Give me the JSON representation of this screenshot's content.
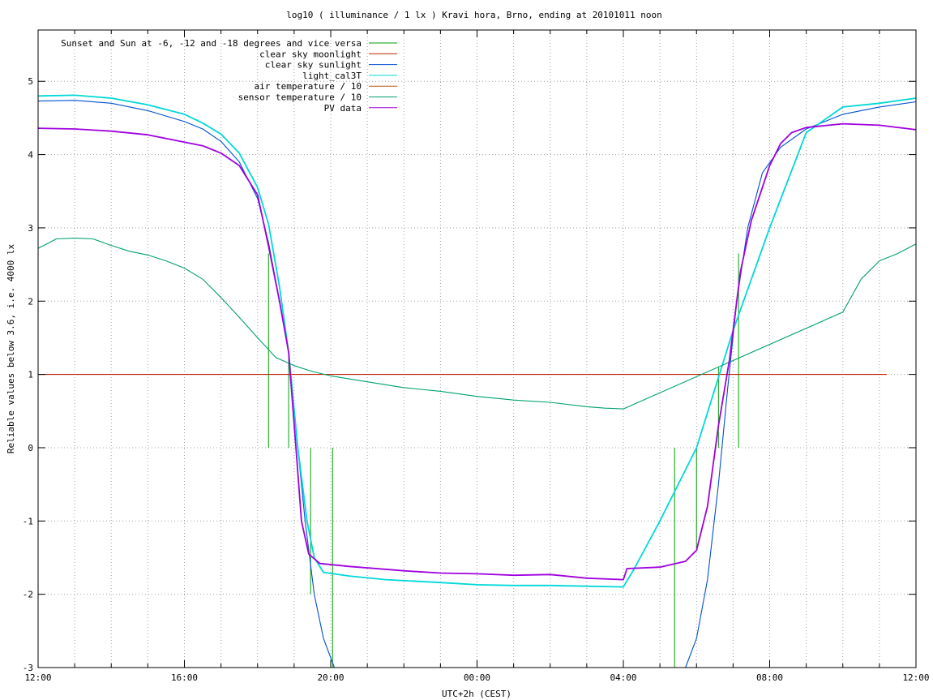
{
  "chart_data": {
    "type": "line",
    "title": "log10 ( illuminance / 1 lx ) Kravi hora, Brno, ending at 20101011 noon",
    "xlabel": "UTC+2h (CEST)",
    "ylabel": "Reliable values below 3.6, i.e. 4000 lx",
    "xlim": [
      0,
      24
    ],
    "ylim": [
      -3,
      5.7
    ],
    "x_ticks": [
      {
        "value": 0,
        "label": "12:00"
      },
      {
        "value": 4,
        "label": "16:00"
      },
      {
        "value": 8,
        "label": "20:00"
      },
      {
        "value": 12,
        "label": "00:00"
      },
      {
        "value": 16,
        "label": "04:00"
      },
      {
        "value": 20,
        "label": "08:00"
      },
      {
        "value": 24,
        "label": "12:00"
      }
    ],
    "x_minor_step": 1,
    "y_ticks": [
      {
        "value": -3,
        "label": "-3"
      },
      {
        "value": -2,
        "label": "-2"
      },
      {
        "value": -1,
        "label": "-1"
      },
      {
        "value": 0,
        "label": "0"
      },
      {
        "value": 1,
        "label": "1"
      },
      {
        "value": 2,
        "label": "2"
      },
      {
        "value": 3,
        "label": "3"
      },
      {
        "value": 4,
        "label": "4"
      },
      {
        "value": 5,
        "label": "5"
      }
    ],
    "grid": true,
    "legend_position": "top-left",
    "series": [
      {
        "name": "Sunset and Sun at -6, -12 and -18 degrees and vice versa",
        "color": "#00a000",
        "style": "impulses",
        "points": [
          [
            6.3,
            2.65
          ],
          [
            6.85,
            1.3
          ],
          [
            7.45,
            -2.0
          ],
          [
            8.05,
            -3.0
          ],
          [
            17.4,
            -3.0
          ],
          [
            18.0,
            -1.4
          ],
          [
            18.6,
            1.1
          ],
          [
            19.15,
            2.65
          ]
        ]
      },
      {
        "name": "clear sky moonlight",
        "color": "#c02000",
        "style": "line",
        "points": [
          [
            0,
            1.0
          ],
          [
            23.2,
            1.0
          ]
        ]
      },
      {
        "name": "clear sky sunlight",
        "color": "#0050d0",
        "style": "line",
        "points": [
          [
            0,
            4.73
          ],
          [
            1,
            4.74
          ],
          [
            2,
            4.7
          ],
          [
            3,
            4.6
          ],
          [
            4,
            4.45
          ],
          [
            4.5,
            4.35
          ],
          [
            5,
            4.18
          ],
          [
            5.5,
            3.9
          ],
          [
            6,
            3.4
          ],
          [
            6.3,
            2.8
          ],
          [
            6.6,
            2.0
          ],
          [
            6.85,
            1.3
          ],
          [
            7.1,
            0.0
          ],
          [
            7.3,
            -1.0
          ],
          [
            7.55,
            -2.0
          ],
          [
            7.8,
            -2.6
          ],
          [
            8.1,
            -3.0
          ],
          [
            17.7,
            -3.0
          ],
          [
            18.0,
            -2.6
          ],
          [
            18.3,
            -1.8
          ],
          [
            18.6,
            -0.5
          ],
          [
            18.85,
            0.8
          ],
          [
            19.1,
            2.0
          ],
          [
            19.4,
            3.0
          ],
          [
            19.8,
            3.75
          ],
          [
            20.3,
            4.1
          ],
          [
            21.0,
            4.35
          ],
          [
            22.0,
            4.55
          ],
          [
            23.0,
            4.65
          ],
          [
            24,
            4.72
          ]
        ]
      },
      {
        "name": "light_cal3T",
        "color": "#00d8d8",
        "style": "line",
        "points": [
          [
            0,
            4.8
          ],
          [
            1,
            4.81
          ],
          [
            2,
            4.77
          ],
          [
            3,
            4.68
          ],
          [
            4,
            4.55
          ],
          [
            4.5,
            4.43
          ],
          [
            5,
            4.28
          ],
          [
            5.5,
            4.02
          ],
          [
            6,
            3.55
          ],
          [
            6.3,
            3.05
          ],
          [
            6.6,
            2.2
          ],
          [
            6.85,
            1.3
          ],
          [
            7.1,
            0.0
          ],
          [
            7.35,
            -1.0
          ],
          [
            7.55,
            -1.5
          ],
          [
            7.8,
            -1.7
          ],
          [
            8.5,
            -1.75
          ],
          [
            9.5,
            -1.8
          ],
          [
            11,
            -1.84
          ],
          [
            12,
            -1.87
          ],
          [
            13,
            -1.88
          ],
          [
            14,
            -1.88
          ],
          [
            15,
            -1.89
          ],
          [
            16,
            -1.9
          ],
          [
            16.3,
            -1.65
          ],
          [
            17,
            -1.0
          ],
          [
            18,
            0.0
          ],
          [
            19,
            1.6
          ],
          [
            20,
            3.0
          ],
          [
            21,
            4.3
          ],
          [
            22,
            4.65
          ],
          [
            23,
            4.7
          ],
          [
            24,
            4.77
          ]
        ]
      },
      {
        "name": "air temperature / 10",
        "color": "#c05000",
        "style": "line",
        "points": []
      },
      {
        "name": "sensor temperature / 10",
        "color": "#00a070",
        "style": "line",
        "points": [
          [
            0,
            2.72
          ],
          [
            0.5,
            2.85
          ],
          [
            1,
            2.86
          ],
          [
            1.5,
            2.85
          ],
          [
            2,
            2.76
          ],
          [
            2.5,
            2.68
          ],
          [
            3,
            2.63
          ],
          [
            3.5,
            2.55
          ],
          [
            4,
            2.45
          ],
          [
            4.5,
            2.3
          ],
          [
            5,
            2.05
          ],
          [
            5.5,
            1.78
          ],
          [
            6,
            1.5
          ],
          [
            6.5,
            1.23
          ],
          [
            7,
            1.12
          ],
          [
            7.5,
            1.04
          ],
          [
            8,
            0.98
          ],
          [
            9,
            0.9
          ],
          [
            10,
            0.82
          ],
          [
            11,
            0.77
          ],
          [
            12,
            0.7
          ],
          [
            13,
            0.65
          ],
          [
            14,
            0.62
          ],
          [
            15,
            0.56
          ],
          [
            15.5,
            0.54
          ],
          [
            16,
            0.53
          ],
          [
            22,
            1.85
          ],
          [
            22.5,
            2.3
          ],
          [
            23,
            2.55
          ],
          [
            23.5,
            2.65
          ],
          [
            24,
            2.78
          ]
        ]
      },
      {
        "name": "PV data",
        "color": "#a000e0",
        "style": "line",
        "points": [
          [
            0,
            4.36
          ],
          [
            1,
            4.35
          ],
          [
            2,
            4.32
          ],
          [
            3,
            4.27
          ],
          [
            4,
            4.17
          ],
          [
            4.5,
            4.12
          ],
          [
            5,
            4.02
          ],
          [
            5.5,
            3.85
          ],
          [
            6,
            3.45
          ],
          [
            6.3,
            2.75
          ],
          [
            6.6,
            2.0
          ],
          [
            6.85,
            1.3
          ],
          [
            7.05,
            0.0
          ],
          [
            7.2,
            -1.0
          ],
          [
            7.4,
            -1.45
          ],
          [
            7.7,
            -1.58
          ],
          [
            8.5,
            -1.62
          ],
          [
            10,
            -1.68
          ],
          [
            11,
            -1.71
          ],
          [
            12,
            -1.72
          ],
          [
            13,
            -1.74
          ],
          [
            14,
            -1.73
          ],
          [
            15,
            -1.78
          ],
          [
            16,
            -1.8
          ],
          [
            16.1,
            -1.65
          ],
          [
            17,
            -1.63
          ],
          [
            17.7,
            -1.55
          ],
          [
            18,
            -1.4
          ],
          [
            18.3,
            -0.8
          ],
          [
            18.6,
            0.3
          ],
          [
            18.9,
            1.2
          ],
          [
            19.2,
            2.4
          ],
          [
            19.5,
            3.1
          ],
          [
            19.8,
            3.55
          ],
          [
            20,
            3.85
          ],
          [
            20.3,
            4.15
          ],
          [
            20.6,
            4.3
          ],
          [
            21,
            4.37
          ],
          [
            22,
            4.42
          ],
          [
            23,
            4.4
          ],
          [
            24,
            4.34
          ]
        ]
      }
    ]
  }
}
